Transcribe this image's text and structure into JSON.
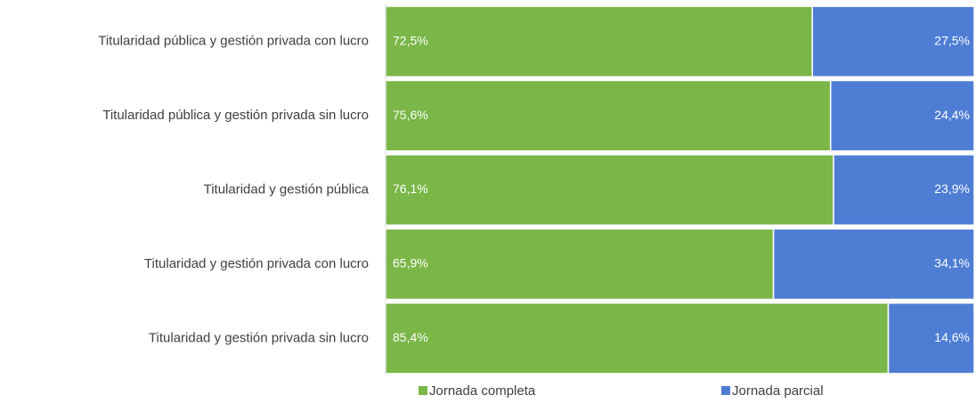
{
  "chart_data": {
    "type": "stacked-bar-horizontal",
    "categories": [
      "Titularidad pública y gestión privada con lucro",
      "Titularidad pública y gestión privada sin lucro",
      "Titularidad y gestión pública",
      "Titularidad y gestión privada con lucro",
      "Titularidad y gestión privada sin lucro"
    ],
    "series": [
      {
        "name": "Jornada completa",
        "color": "#7ab648",
        "values": [
          72.5,
          75.6,
          76.1,
          65.9,
          85.4
        ],
        "value_labels": [
          "72,5%",
          "75,6%",
          "76,1%",
          "65,9%",
          "85,4%"
        ]
      },
      {
        "name": "Jornada parcial",
        "color": "#4e7dd4",
        "values": [
          27.5,
          24.4,
          23.9,
          34.1,
          14.6
        ],
        "value_labels": [
          "27,5%",
          "24,4%",
          "23,9%",
          "34,1%",
          "14,6%"
        ]
      }
    ],
    "xlim": [
      0,
      100
    ],
    "legend": "bottom"
  }
}
